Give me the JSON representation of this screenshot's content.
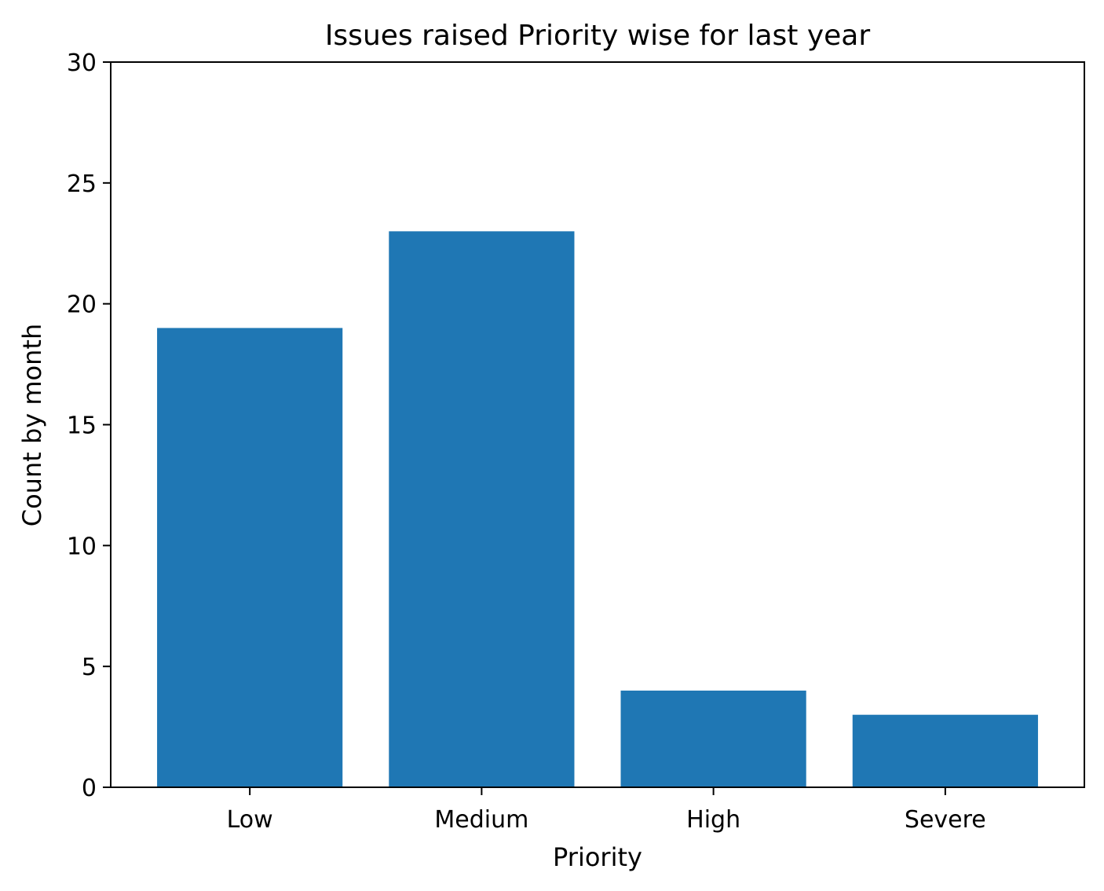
{
  "chart_data": {
    "type": "bar",
    "title": "Issues raised Priority wise for last year",
    "xlabel": "Priority",
    "ylabel": "Count by month",
    "categories": [
      "Low",
      "Medium",
      "High",
      "Severe"
    ],
    "values": [
      19,
      23,
      4,
      3
    ],
    "ylim": [
      0,
      30
    ],
    "yticks": [
      0,
      5,
      10,
      15,
      20,
      25,
      30
    ],
    "grid": false,
    "bar_color": "#1f77b4"
  }
}
